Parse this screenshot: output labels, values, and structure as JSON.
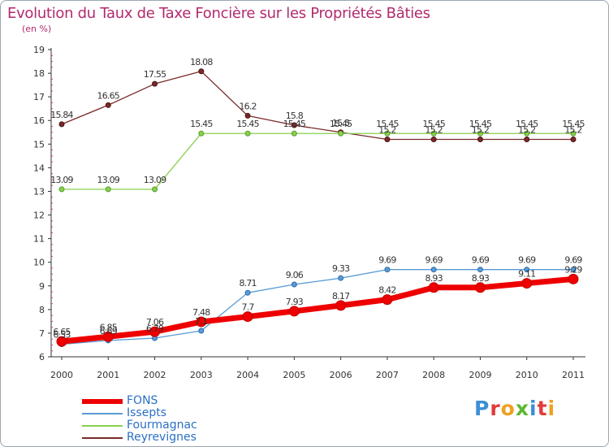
{
  "title": "Evolution du Taux de Taxe Foncière sur les Propriétés Bâties",
  "unit_label": "(en %)",
  "brand": "Proxiti",
  "brand_colors": [
    "#3b8fd6",
    "#e23b3b",
    "#f0a020",
    "#5cb82e",
    "#3b8fd6",
    "#e23b3b",
    "#f0a020"
  ],
  "chart_data": {
    "type": "line",
    "title": "Evolution du Taux de Taxe Foncière sur les Propriétés Bâties",
    "ylabel": "(en %)",
    "xlabel": "",
    "ylim": [
      6,
      19
    ],
    "yticks": [
      "6",
      "7",
      "8",
      "9",
      "10",
      "11",
      "12",
      "13",
      "14",
      "15",
      "16",
      "17",
      "18",
      "19"
    ],
    "categories": [
      "2000",
      "2001",
      "2002",
      "2003",
      "2004",
      "2005",
      "2006",
      "2007",
      "2008",
      "2009",
      "2010",
      "2011"
    ],
    "grid": false,
    "legend_position": "bottom-left",
    "series": [
      {
        "name": "Reyrevignes",
        "color": "#7a2a2a",
        "values": [
          15.84,
          16.65,
          17.55,
          18.08,
          16.2,
          15.8,
          15.5,
          15.2,
          15.2,
          15.2,
          15.2,
          15.2
        ],
        "labels": [
          "15.84",
          "16.65",
          "17.55",
          "18.08",
          "16.2",
          "15.8",
          "15.5",
          "15.2",
          "15.2",
          "15.2",
          "15.2",
          "15.2"
        ]
      },
      {
        "name": "Fourmagnac",
        "color": "#86d14e",
        "values": [
          13.09,
          13.09,
          13.09,
          15.45,
          15.45,
          15.45,
          15.45,
          15.45,
          15.45,
          15.45,
          15.45,
          15.45
        ],
        "labels": [
          "13.09",
          "13.09",
          "13.09",
          "15.45",
          "15.45",
          "15.45",
          "15.45",
          "15.45",
          "15.45",
          "15.45",
          "15.45",
          "15.45"
        ]
      },
      {
        "name": "Issepts",
        "color": "#5a9bd5",
        "values": [
          6.53,
          6.69,
          6.79,
          7.1,
          8.71,
          9.06,
          9.33,
          9.69,
          9.69,
          9.69,
          9.69,
          9.69
        ],
        "labels": [
          "6.53",
          "6.69",
          "6.79",
          "7.1",
          "8.71",
          "9.06",
          "9.33",
          "9.69",
          "9.69",
          "9.69",
          "9.69",
          "9.69"
        ]
      },
      {
        "name": "FONS",
        "color": "#ee0000",
        "values": [
          6.65,
          6.85,
          7.06,
          7.48,
          7.7,
          7.93,
          8.17,
          8.42,
          8.93,
          8.93,
          9.11,
          9.29
        ],
        "labels": [
          "6.65",
          "6.85",
          "7.06",
          "7.48",
          "7.7",
          "7.93",
          "8.17",
          "8.42",
          "8.93",
          "8.93",
          "9.11",
          "9.29"
        ]
      }
    ]
  },
  "legend": [
    {
      "name": "FONS",
      "color": "#ee0000",
      "thickness": "thick"
    },
    {
      "name": "Issepts",
      "color": "#5a9bd5",
      "thickness": "thin"
    },
    {
      "name": "Fourmagnac",
      "color": "#86d14e",
      "thickness": "thin"
    },
    {
      "name": "Reyrevignes",
      "color": "#7a2a2a",
      "thickness": "thin"
    }
  ]
}
